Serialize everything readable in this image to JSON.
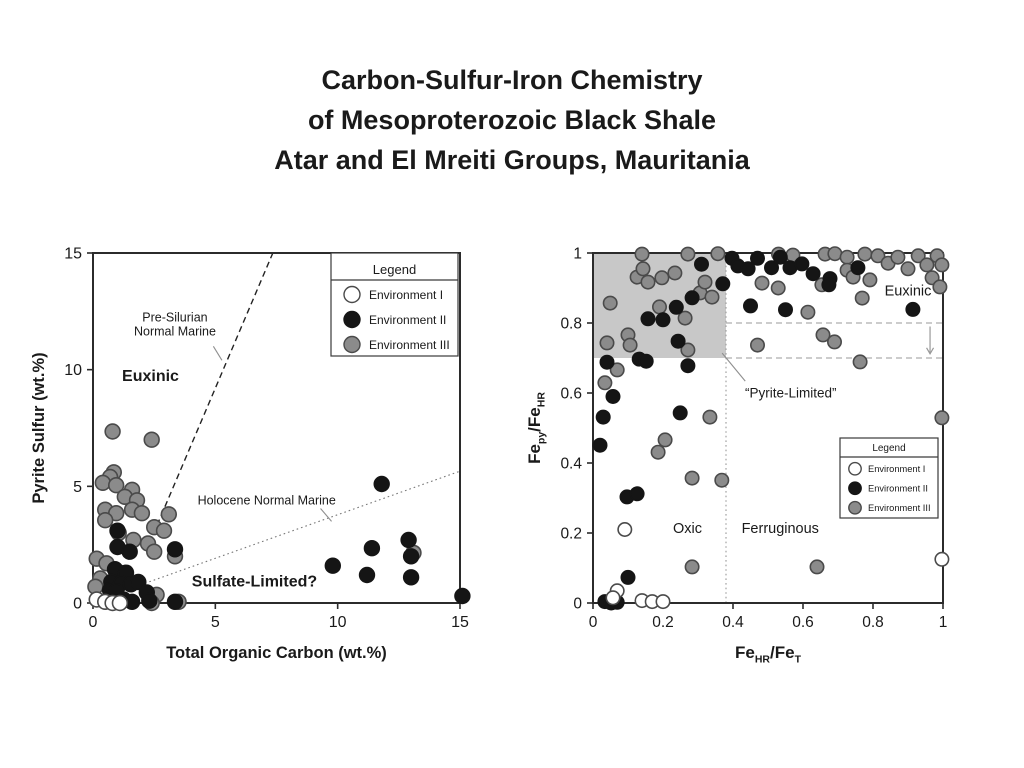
{
  "slide_title": {
    "lines": [
      "Carbon-Sulfur-Iron Chemistry",
      "of Mesoproterozoic Black Shale",
      "Atar and El Mreiti Groups, Mauritania"
    ]
  },
  "legend": {
    "header": "Legend",
    "items": [
      {
        "name": "Environment I",
        "fill": "#ffffff",
        "stroke": "#4a4a4a"
      },
      {
        "name": "Environment II",
        "fill": "#151515",
        "stroke": "#151515"
      },
      {
        "name": "Environment III",
        "fill": "#8b8b8b",
        "stroke": "#4a4a4a"
      }
    ]
  },
  "colors": {
    "axis": "#2b2b2b",
    "text": "#1a1a1a",
    "shade": "#c8c8c8",
    "guide": "#999999",
    "callout": "#8f8f8f"
  },
  "chart_data": [
    {
      "type": "scatter",
      "title": "C-S diagram",
      "xlabel_parts": [
        {
          "t": "Total Organic Carbon (wt.%)"
        }
      ],
      "ylabel_parts": [
        {
          "t": "Pyrite Sulfur (wt.%)"
        }
      ],
      "xlim": [
        0,
        15
      ],
      "ylim": [
        0,
        15
      ],
      "xticks": [
        {
          "v": 0,
          "t": "0"
        },
        {
          "v": 5,
          "t": "5"
        },
        {
          "v": 10,
          "t": "10"
        },
        {
          "v": 15,
          "t": "15"
        }
      ],
      "yticks": [
        {
          "v": 0,
          "t": "0"
        },
        {
          "v": 5,
          "t": "5"
        },
        {
          "v": 10,
          "t": "10"
        },
        {
          "v": 15,
          "t": "15"
        }
      ],
      "grid": false,
      "legend_position": "top-right-inside",
      "regions": [],
      "guides": [],
      "ref_lines": [
        {
          "name": "Pre-Silurian Normal Marine",
          "from": [
            2.3,
            2.55
          ],
          "to": [
            7.35,
            15
          ],
          "dash": "dashed",
          "color": "#222222",
          "width": 1.4
        },
        {
          "name": "Holocene Normal Marine",
          "from": [
            0,
            0.05
          ],
          "to": [
            15,
            5.65
          ],
          "dash": "dotted",
          "color": "#777777",
          "width": 1.1
        }
      ],
      "callouts": [
        {
          "from": [
            4.92,
            11.0
          ],
          "to": [
            5.27,
            10.4
          ]
        },
        {
          "from": [
            9.3,
            4.05
          ],
          "to": [
            9.75,
            3.5
          ]
        }
      ],
      "annotations": [
        {
          "lines": [
            "Pre-Silurian",
            "Normal Marine"
          ],
          "x": 3.35,
          "y": 11.95,
          "bold": false,
          "size": 12.5
        },
        {
          "lines": [
            "Euxinic"
          ],
          "x": 2.35,
          "y": 9.75,
          "bold": true,
          "size": 16
        },
        {
          "lines": [
            "Holocene Normal Marine"
          ],
          "x": 7.1,
          "y": 4.4,
          "bold": false,
          "size": 12.5
        },
        {
          "lines": [
            "Sulfate-Limited?"
          ],
          "x": 6.6,
          "y": 0.95,
          "bold": true,
          "size": 16
        }
      ],
      "series": [
        {
          "name": "Environment III",
          "fill": "#8b8b8b",
          "stroke": "#4a4a4a",
          "points": [
            [
              0.8,
              7.35
            ],
            [
              2.4,
              7.0
            ],
            [
              0.85,
              5.6
            ],
            [
              0.7,
              5.4
            ],
            [
              0.4,
              5.15
            ],
            [
              0.95,
              5.05
            ],
            [
              1.6,
              4.85
            ],
            [
              1.3,
              4.55
            ],
            [
              1.8,
              4.4
            ],
            [
              0.5,
              4.0
            ],
            [
              1.6,
              4.0
            ],
            [
              0.95,
              3.85
            ],
            [
              2.0,
              3.85
            ],
            [
              3.1,
              3.8
            ],
            [
              0.5,
              3.55
            ],
            [
              2.5,
              3.25
            ],
            [
              2.9,
              3.1
            ],
            [
              1.05,
              3.0
            ],
            [
              1.65,
              2.7
            ],
            [
              2.25,
              2.55
            ],
            [
              2.5,
              2.2
            ],
            [
              3.35,
              2.0
            ],
            [
              0.15,
              1.9
            ],
            [
              0.55,
              1.7
            ],
            [
              1.1,
              1.3
            ],
            [
              0.3,
              1.05
            ],
            [
              0.1,
              0.7
            ],
            [
              2.6,
              0.35
            ],
            [
              3.5,
              0.05
            ],
            [
              2.4,
              0.0
            ],
            [
              13.1,
              2.15
            ]
          ]
        },
        {
          "name": "Environment II",
          "fill": "#151515",
          "stroke": "#151515",
          "points": [
            [
              1.0,
              3.1
            ],
            [
              1.0,
              2.4
            ],
            [
              1.5,
              2.2
            ],
            [
              3.35,
              2.3
            ],
            [
              0.9,
              1.45
            ],
            [
              1.35,
              1.3
            ],
            [
              0.75,
              0.9
            ],
            [
              1.15,
              0.85
            ],
            [
              1.55,
              0.8
            ],
            [
              1.85,
              0.9
            ],
            [
              0.7,
              0.55
            ],
            [
              0.95,
              0.5
            ],
            [
              2.2,
              0.45
            ],
            [
              1.25,
              0.15
            ],
            [
              1.1,
              0.02
            ],
            [
              1.6,
              0.05
            ],
            [
              2.3,
              0.1
            ],
            [
              3.35,
              0.05
            ],
            [
              9.8,
              1.6
            ],
            [
              11.4,
              2.35
            ],
            [
              11.2,
              1.2
            ],
            [
              11.8,
              5.1
            ],
            [
              12.9,
              2.7
            ],
            [
              13.0,
              2.0
            ],
            [
              13.0,
              1.1
            ],
            [
              15.1,
              0.3
            ]
          ]
        },
        {
          "name": "Environment I",
          "fill": "#ffffff",
          "stroke": "#4a4a4a",
          "points": [
            [
              0.15,
              0.15
            ],
            [
              0.5,
              0.05
            ],
            [
              0.8,
              0.0
            ],
            [
              1.1,
              0.0
            ]
          ]
        }
      ]
    },
    {
      "type": "scatter",
      "title": "Fe speciation diagram",
      "xlabel_parts": [
        {
          "t": "Fe"
        },
        {
          "t": "HR",
          "sub": true
        },
        {
          "t": "/Fe"
        },
        {
          "t": "T",
          "sub": true
        }
      ],
      "ylabel_parts": [
        {
          "t": "Fe"
        },
        {
          "t": "py",
          "sub": true
        },
        {
          "t": "/Fe"
        },
        {
          "t": "HR",
          "sub": true
        }
      ],
      "xlim": [
        0,
        1
      ],
      "ylim": [
        0,
        1
      ],
      "xticks": [
        {
          "v": 0,
          "t": "0"
        },
        {
          "v": 0.2,
          "t": "0.2"
        },
        {
          "v": 0.4,
          "t": "0.4"
        },
        {
          "v": 0.6,
          "t": "0.6"
        },
        {
          "v": 0.8,
          "t": "0.8"
        },
        {
          "v": 1,
          "t": "1"
        }
      ],
      "yticks": [
        {
          "v": 0,
          "t": "0"
        },
        {
          "v": 0.2,
          "t": "0.2"
        },
        {
          "v": 0.4,
          "t": "0.4"
        },
        {
          "v": 0.6,
          "t": "0.6"
        },
        {
          "v": 0.8,
          "t": "0.8"
        },
        {
          "v": 1,
          "t": "1"
        }
      ],
      "grid": false,
      "legend_position": "right-inside",
      "regions": [
        {
          "x1": 0,
          "x2": 0.38,
          "y1": 0.7,
          "y2": 1.0,
          "label": "pyrite-limited-zone"
        }
      ],
      "guides": [
        {
          "type": "v",
          "x": 0.38,
          "y1": 0,
          "y2": 1,
          "dash": "dotted"
        },
        {
          "type": "h",
          "y": 0.8,
          "x1": 0.38,
          "x2": 1,
          "dash": "dashed"
        },
        {
          "type": "h",
          "y": 0.7,
          "x1": 0.38,
          "x2": 1,
          "dash": "dashed"
        }
      ],
      "arrow": {
        "x": 0.963,
        "from": 0.79,
        "to": 0.712
      },
      "ref_lines": [],
      "callouts": [
        {
          "from": [
            0.369,
            0.714
          ],
          "to": [
            0.435,
            0.634
          ]
        }
      ],
      "annotations": [
        {
          "lines": [
            "Euxinic"
          ],
          "x": 0.9,
          "y": 0.893,
          "bold": false,
          "size": 14.5
        },
        {
          "lines": [
            "“Pyrite-Limited”"
          ],
          "x": 0.565,
          "y": 0.6,
          "bold": false,
          "size": 13.5
        },
        {
          "lines": [
            "Oxic"
          ],
          "x": 0.27,
          "y": 0.215,
          "bold": false,
          "size": 14.5
        },
        {
          "lines": [
            "Ferruginous"
          ],
          "x": 0.535,
          "y": 0.215,
          "bold": false,
          "size": 14.5
        }
      ],
      "series": [
        {
          "name": "Environment III",
          "fill": "#8b8b8b",
          "stroke": "#4a4a4a",
          "points": [
            [
              0.14,
              0.997
            ],
            [
              0.271,
              0.997
            ],
            [
              0.357,
              0.998
            ],
            [
              0.53,
              0.997
            ],
            [
              0.571,
              0.994
            ],
            [
              0.663,
              0.997
            ],
            [
              0.691,
              0.998
            ],
            [
              0.726,
              0.988
            ],
            [
              0.777,
              0.997
            ],
            [
              0.814,
              0.992
            ],
            [
              0.843,
              0.971
            ],
            [
              0.871,
              0.988
            ],
            [
              0.9,
              0.955
            ],
            [
              0.929,
              0.992
            ],
            [
              0.954,
              0.966
            ],
            [
              0.983,
              0.992
            ],
            [
              0.997,
              0.966
            ],
            [
              0.969,
              0.929
            ],
            [
              0.991,
              0.903
            ],
            [
              0.126,
              0.931
            ],
            [
              0.143,
              0.955
            ],
            [
              0.157,
              0.917
            ],
            [
              0.197,
              0.929
            ],
            [
              0.234,
              0.943
            ],
            [
              0.306,
              0.886
            ],
            [
              0.32,
              0.917
            ],
            [
              0.34,
              0.874
            ],
            [
              0.483,
              0.914
            ],
            [
              0.529,
              0.9
            ],
            [
              0.654,
              0.909
            ],
            [
              0.726,
              0.951
            ],
            [
              0.743,
              0.931
            ],
            [
              0.791,
              0.923
            ],
            [
              0.049,
              0.857
            ],
            [
              0.19,
              0.846
            ],
            [
              0.263,
              0.814
            ],
            [
              0.614,
              0.831
            ],
            [
              0.769,
              0.871
            ],
            [
              0.04,
              0.743
            ],
            [
              0.1,
              0.766
            ],
            [
              0.106,
              0.737
            ],
            [
              0.271,
              0.723
            ],
            [
              0.47,
              0.737
            ],
            [
              0.657,
              0.766
            ],
            [
              0.69,
              0.746
            ],
            [
              0.763,
              0.689
            ],
            [
              0.069,
              0.666
            ],
            [
              0.034,
              0.629
            ],
            [
              0.206,
              0.466
            ],
            [
              0.186,
              0.431
            ],
            [
              0.334,
              0.531
            ],
            [
              0.283,
              0.357
            ],
            [
              0.368,
              0.351
            ],
            [
              0.283,
              0.103
            ],
            [
              0.64,
              0.103
            ],
            [
              0.997,
              0.529
            ]
          ]
        },
        {
          "name": "Environment II",
          "fill": "#151515",
          "stroke": "#151515",
          "points": [
            [
              0.397,
              0.985
            ],
            [
              0.47,
              0.985
            ],
            [
              0.31,
              0.968
            ],
            [
              0.414,
              0.963
            ],
            [
              0.443,
              0.955
            ],
            [
              0.51,
              0.958
            ],
            [
              0.535,
              0.988
            ],
            [
              0.563,
              0.958
            ],
            [
              0.597,
              0.969
            ],
            [
              0.629,
              0.941
            ],
            [
              0.677,
              0.927
            ],
            [
              0.757,
              0.958
            ],
            [
              0.371,
              0.912
            ],
            [
              0.674,
              0.909
            ],
            [
              0.283,
              0.872
            ],
            [
              0.45,
              0.849
            ],
            [
              0.55,
              0.838
            ],
            [
              0.914,
              0.839
            ],
            [
              0.157,
              0.812
            ],
            [
              0.2,
              0.809
            ],
            [
              0.238,
              0.845
            ],
            [
              0.243,
              0.748
            ],
            [
              0.132,
              0.697
            ],
            [
              0.152,
              0.691
            ],
            [
              0.04,
              0.688
            ],
            [
              0.271,
              0.678
            ],
            [
              0.057,
              0.59
            ],
            [
              0.029,
              0.531
            ],
            [
              0.249,
              0.543
            ],
            [
              0.02,
              0.451
            ],
            [
              0.097,
              0.303
            ],
            [
              0.126,
              0.312
            ],
            [
              0.1,
              0.073
            ],
            [
              0.034,
              0.004
            ],
            [
              0.069,
              0.002
            ],
            [
              0.052,
              0.0
            ]
          ]
        },
        {
          "name": "Environment I",
          "fill": "#ffffff",
          "stroke": "#4a4a4a",
          "points": [
            [
              0.091,
              0.21
            ],
            [
              0.069,
              0.035
            ],
            [
              0.057,
              0.015
            ],
            [
              0.14,
              0.007
            ],
            [
              0.169,
              0.004
            ],
            [
              0.2,
              0.004
            ],
            [
              0.997,
              0.125
            ]
          ]
        }
      ]
    }
  ]
}
